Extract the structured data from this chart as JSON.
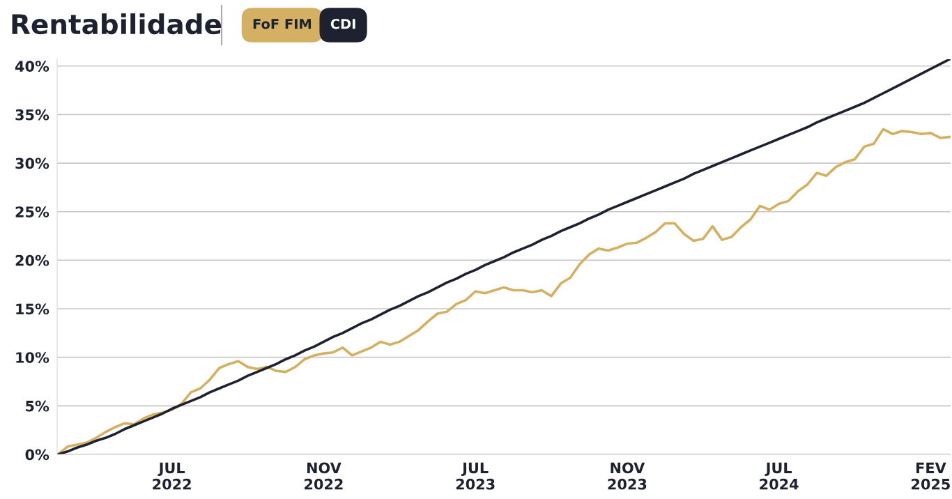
{
  "chart_data": {
    "type": "line",
    "title": "Rentabilidade",
    "categories": [
      null,
      null,
      null,
      null,
      null,
      null,
      null,
      null,
      null,
      null,
      null,
      null,
      "JUL\n2022",
      null,
      null,
      null,
      null,
      null,
      null,
      null,
      null,
      null,
      null,
      null,
      null,
      null,
      null,
      null,
      "NOV\n2022",
      null,
      null,
      null,
      null,
      null,
      null,
      null,
      null,
      null,
      null,
      null,
      null,
      null,
      null,
      null,
      "JUL\n2023",
      null,
      null,
      null,
      null,
      null,
      null,
      null,
      null,
      null,
      null,
      null,
      null,
      null,
      null,
      null,
      "NOV\n2023",
      null,
      null,
      null,
      null,
      null,
      null,
      null,
      null,
      null,
      null,
      null,
      null,
      null,
      null,
      null,
      "JUL\n2024",
      null,
      null,
      null,
      null,
      null,
      null,
      null,
      null,
      null,
      null,
      null,
      null,
      null,
      null,
      null,
      "FEV\n2025",
      null,
      null
    ],
    "ylim": [
      0,
      40.7
    ],
    "yticks": [
      {
        "value": 0,
        "label": "0%"
      },
      {
        "value": 5,
        "label": "5%"
      },
      {
        "value": 10,
        "label": "10%"
      },
      {
        "value": 15,
        "label": "15%"
      },
      {
        "value": 20,
        "label": "20%"
      },
      {
        "value": 25,
        "label": "25%"
      },
      {
        "value": 30,
        "label": "30%"
      },
      {
        "value": 35,
        "label": "35%"
      },
      {
        "value": 40,
        "label": "40%"
      }
    ],
    "grid": "y",
    "legend": "top left",
    "marker": "none",
    "line_style": "solid",
    "series": [
      {
        "name": "FoF FIM",
        "color": "#d4b062",
        "values": [
          0,
          0.8,
          1.0,
          1.2,
          1.7,
          2.3,
          2.8,
          3.2,
          3.1,
          3.7,
          4.1,
          4.3,
          4.6,
          5.2,
          6.4,
          6.8,
          7.7,
          8.9,
          9.3,
          9.6,
          9.0,
          8.8,
          9.0,
          8.6,
          8.5,
          9.0,
          9.8,
          10.2,
          10.4,
          10.5,
          11.0,
          10.2,
          10.6,
          11.0,
          11.6,
          11.3,
          11.6,
          12.2,
          12.8,
          13.7,
          14.5,
          14.7,
          15.5,
          15.9,
          16.8,
          16.6,
          16.9,
          17.2,
          16.9,
          16.9,
          16.7,
          16.9,
          16.3,
          17.6,
          18.2,
          19.6,
          20.6,
          21.2,
          21.0,
          21.3,
          21.7,
          21.8,
          22.3,
          22.9,
          23.8,
          23.8,
          22.7,
          22.0,
          22.2,
          23.5,
          22.1,
          22.4,
          23.4,
          24.2,
          25.6,
          25.2,
          25.8,
          26.1,
          27.1,
          27.8,
          29.0,
          28.7,
          29.6,
          30.1,
          30.4,
          31.7,
          32.0,
          33.5,
          33.0,
          33.3,
          33.2,
          33.0,
          33.1,
          32.6,
          32.7
        ]
      },
      {
        "name": "CDI",
        "color": "#1e2130",
        "values": [
          0,
          0.3,
          0.7,
          1.0,
          1.4,
          1.7,
          2.1,
          2.6,
          3.0,
          3.4,
          3.8,
          4.2,
          4.7,
          5.1,
          5.5,
          5.9,
          6.4,
          6.8,
          7.2,
          7.6,
          8.1,
          8.5,
          8.9,
          9.3,
          9.8,
          10.2,
          10.7,
          11.1,
          11.6,
          12.1,
          12.5,
          13.0,
          13.5,
          13.9,
          14.4,
          14.9,
          15.3,
          15.8,
          16.3,
          16.7,
          17.2,
          17.7,
          18.1,
          18.6,
          19.0,
          19.5,
          19.9,
          20.3,
          20.8,
          21.2,
          21.6,
          22.1,
          22.5,
          23.0,
          23.4,
          23.8,
          24.3,
          24.7,
          25.2,
          25.6,
          26.0,
          26.4,
          26.8,
          27.2,
          27.6,
          28.0,
          28.4,
          28.9,
          29.3,
          29.7,
          30.1,
          30.5,
          30.9,
          31.3,
          31.7,
          32.1,
          32.5,
          32.9,
          33.3,
          33.7,
          34.2,
          34.6,
          35.0,
          35.4,
          35.8,
          36.2,
          36.7,
          37.2,
          37.7,
          38.2,
          38.7,
          39.2,
          39.7,
          40.2,
          40.7
        ]
      }
    ]
  }
}
